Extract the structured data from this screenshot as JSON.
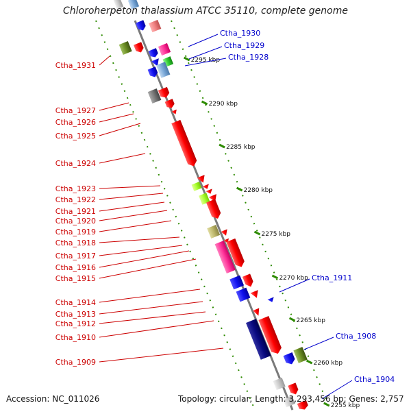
{
  "title": "Chloroherpeton thalassium ATCC 35110, complete genome",
  "footer": {
    "accession": "Accession: NC_011026",
    "topology": "Topology: circular; Length: 3,293,456 bp; Genes: 2,757"
  },
  "scale_labels": [
    "2295 kbp",
    "2290 kbp",
    "2285 kbp",
    "2280 kbp",
    "2275 kbp",
    "2270 kbp",
    "2265 kbp",
    "2260 kbp",
    "2255 kbp"
  ],
  "left_labels": [
    "Ctha_1931",
    "Ctha_1927",
    "Ctha_1926",
    "Ctha_1925",
    "Ctha_1924",
    "Ctha_1923",
    "Ctha_1922",
    "Ctha_1921",
    "Ctha_1920",
    "Ctha_1919",
    "Ctha_1918",
    "Ctha_1917",
    "Ctha_1916",
    "Ctha_1915",
    "Ctha_1914",
    "Ctha_1913",
    "Ctha_1912",
    "Ctha_1910",
    "Ctha_1909"
  ],
  "right_labels": [
    "Ctha_1930",
    "Ctha_1929",
    "Ctha_1928",
    "Ctha_1911",
    "Ctha_1908",
    "Ctha_1904"
  ],
  "colors": {
    "left_label": "#cc0000",
    "right_label": "#0000cc",
    "backbone": "#7a7a7a",
    "tick": "#2e8b00",
    "red": "#ff0000",
    "blue": "#1010ee",
    "navy": "#0a0a80",
    "pink": "#ff3399",
    "olive": "#6b8e23",
    "lime": "#aaff33",
    "khaki": "#bdb76b",
    "gray": "#777777",
    "light_gray": "#c8c8c8"
  }
}
